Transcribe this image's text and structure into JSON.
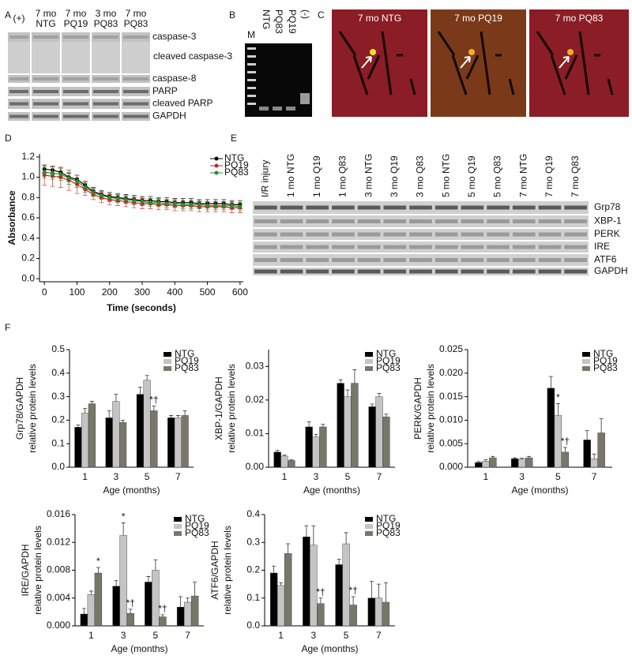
{
  "panel_labels": [
    "A",
    "B",
    "C",
    "D",
    "E",
    "F"
  ],
  "blot_a": {
    "columns": [
      [
        "(+)"
      ],
      [
        "7 mo",
        "NTG"
      ],
      [
        "7 mo",
        "PQ19"
      ],
      [
        "3 mo",
        "PQ83"
      ],
      [
        "7 mo",
        "PQ83"
      ]
    ],
    "rows": [
      "caspase-3",
      "cleaved caspase-3",
      "caspase-8",
      "PARP",
      "cleaved PARP",
      "GAPDH"
    ]
  },
  "gel_b": {
    "lanes": [
      "M",
      "NTG",
      "PQ83",
      "PQ19",
      "(-)"
    ]
  },
  "images_c": {
    "labels": [
      "7 mo NTG",
      "7 mo PQ19",
      "7 mo PQ83"
    ]
  },
  "blot_e": {
    "columns": [
      "I/R injury",
      "1 mo NTG",
      "1 mo Q19",
      "1 mo Q83",
      "3 mo NTG",
      "3 mo Q19",
      "3 mo Q83",
      "5 mo NTG",
      "5 mo Q19",
      "5 mo Q83",
      "7 mo NTG",
      "7 mo Q19",
      "7 mo Q83"
    ],
    "rows": [
      "Grp78",
      "XBP-1",
      "PERK",
      "IRE",
      "ATF6",
      "GAPDH"
    ]
  },
  "chart_data": [
    {
      "type": "line",
      "xlabel": "Time (seconds)",
      "ylabel": "Absorbance",
      "x": [
        0,
        25,
        50,
        75,
        100,
        125,
        150,
        175,
        200,
        225,
        250,
        275,
        300,
        325,
        350,
        375,
        400,
        425,
        450,
        475,
        500,
        525,
        550,
        575,
        600
      ],
      "xlim": [
        -15,
        610
      ],
      "xticks": [
        0,
        100,
        200,
        300,
        400,
        500,
        600
      ],
      "ylim": [
        -0.03,
        1.23
      ],
      "yticks": [
        {
          "value": 0,
          "label": "0.0"
        },
        0.2,
        0.4,
        0.6,
        0.8,
        {
          "value": 1,
          "label": "1.0"
        },
        1.2
      ],
      "legend": "upper right",
      "series": [
        {
          "name": "NTG",
          "color": "#000000",
          "values": [
            1.08,
            1.07,
            1.05,
            1.0,
            0.98,
            0.92,
            0.86,
            0.83,
            0.81,
            0.8,
            0.79,
            0.78,
            0.77,
            0.77,
            0.76,
            0.76,
            0.75,
            0.75,
            0.75,
            0.74,
            0.74,
            0.74,
            0.74,
            0.73,
            0.73
          ],
          "errors": [
            0.04,
            0.04,
            0.04,
            0.04,
            0.04,
            0.04,
            0.04,
            0.04,
            0.04,
            0.04,
            0.04,
            0.04,
            0.04,
            0.04,
            0.04,
            0.04,
            0.04,
            0.04,
            0.04,
            0.04,
            0.04,
            0.04,
            0.04,
            0.04,
            0.04
          ]
        },
        {
          "name": "PQ19",
          "color": "#d02020",
          "values": [
            1.02,
            1.01,
            1.0,
            0.97,
            0.93,
            0.88,
            0.83,
            0.8,
            0.78,
            0.77,
            0.76,
            0.75,
            0.74,
            0.74,
            0.73,
            0.73,
            0.72,
            0.72,
            0.72,
            0.71,
            0.71,
            0.71,
            0.71,
            0.7,
            0.7
          ],
          "errors": [
            0.1,
            0.1,
            0.1,
            0.1,
            0.09,
            0.06,
            0.05,
            0.05,
            0.05,
            0.05,
            0.05,
            0.05,
            0.05,
            0.05,
            0.05,
            0.05,
            0.05,
            0.05,
            0.05,
            0.05,
            0.05,
            0.05,
            0.05,
            0.05,
            0.05
          ]
        },
        {
          "name": "PQ83",
          "color": "#2e8b2e",
          "values": [
            1.05,
            1.04,
            1.03,
            0.99,
            0.96,
            0.9,
            0.85,
            0.82,
            0.8,
            0.79,
            0.78,
            0.77,
            0.76,
            0.75,
            0.75,
            0.74,
            0.74,
            0.73,
            0.73,
            0.73,
            0.72,
            0.72,
            0.72,
            0.72,
            0.71
          ],
          "errors": [
            0.06,
            0.06,
            0.06,
            0.06,
            0.06,
            0.05,
            0.04,
            0.04,
            0.04,
            0.04,
            0.04,
            0.04,
            0.04,
            0.04,
            0.04,
            0.04,
            0.04,
            0.04,
            0.04,
            0.04,
            0.04,
            0.04,
            0.04,
            0.04,
            0.04
          ]
        }
      ]
    },
    {
      "type": "bar",
      "xlabel": "Age (months)",
      "ylabel": [
        "Grp78/GAPDH",
        "relative protein levels"
      ],
      "categories": [
        "1",
        "3",
        "5",
        "7"
      ],
      "ylim": [
        0,
        0.5
      ],
      "yticks": [
        {
          "value": 0,
          "label": "0.0"
        },
        0.1,
        0.2,
        0.3,
        0.4,
        0.5
      ],
      "legend": "upper right",
      "series": [
        {
          "name": "NTG",
          "color": "#000000",
          "values": [
            0.17,
            0.21,
            0.31,
            0.21
          ],
          "errors": [
            0.01,
            0.03,
            0.03,
            0.01
          ]
        },
        {
          "name": "PQ19",
          "color": "#c4c4c4",
          "values": [
            0.23,
            0.28,
            0.37,
            0.21
          ],
          "errors": [
            0.02,
            0.03,
            0.02,
            0.01
          ]
        },
        {
          "name": "PQ83",
          "color": "#77776a",
          "values": [
            0.27,
            0.19,
            0.24,
            0.22
          ],
          "errors": [
            0.01,
            0.01,
            0.02,
            0.02
          ],
          "annotations": [
            null,
            null,
            "*†",
            null
          ]
        }
      ]
    },
    {
      "type": "bar",
      "xlabel": "Age (months)",
      "ylabel": [
        "XBP-1/GAPDH",
        "relative protein levels"
      ],
      "categories": [
        "1",
        "3",
        "5",
        "7"
      ],
      "ylim": [
        0,
        0.035
      ],
      "yticks": [
        {
          "value": 0,
          "label": "0.00"
        },
        0.01,
        0.02,
        0.03
      ],
      "legend": "upper right",
      "series": [
        {
          "name": "NTG",
          "color": "#000000",
          "values": [
            0.0045,
            0.012,
            0.025,
            0.018
          ],
          "errors": [
            0.0005,
            0.0015,
            0.001,
            0.0008
          ]
        },
        {
          "name": "PQ19",
          "color": "#c4c4c4",
          "values": [
            0.0033,
            0.009,
            0.021,
            0.021
          ],
          "errors": [
            0.0003,
            0.0008,
            0.002,
            0.001
          ]
        },
        {
          "name": "PQ83",
          "color": "#77776a",
          "values": [
            0.002,
            0.012,
            0.025,
            0.015
          ],
          "errors": [
            0.0002,
            0.0008,
            0.004,
            0.0008
          ]
        }
      ]
    },
    {
      "type": "bar",
      "xlabel": "Age (months)",
      "ylabel": [
        "PERK/GAPDH",
        "relative protein levels"
      ],
      "categories": [
        "1",
        "3",
        "5",
        "7"
      ],
      "ylim": [
        0,
        0.025
      ],
      "yticks": [
        {
          "value": 0,
          "label": "0.000"
        },
        0.005,
        {
          "value": 0.01,
          "label": "0.010"
        },
        0.015,
        {
          "value": 0.02,
          "label": "0.020"
        },
        0.025
      ],
      "legend": "upper right",
      "series": [
        {
          "name": "NTG",
          "color": "#000000",
          "values": [
            0.001,
            0.0018,
            0.0168,
            0.0058
          ],
          "errors": [
            0.0002,
            0.0002,
            0.0025,
            0.002
          ]
        },
        {
          "name": "PQ19",
          "color": "#c4c4c4",
          "values": [
            0.0013,
            0.0017,
            0.011,
            0.0018
          ],
          "errors": [
            0.0003,
            0.0002,
            0.0025,
            0.001
          ],
          "annotations": [
            null,
            null,
            "*",
            null
          ]
        },
        {
          "name": "PQ83",
          "color": "#77776a",
          "values": [
            0.002,
            0.002,
            0.0032,
            0.0073
          ],
          "errors": [
            0.0003,
            0.0003,
            0.001,
            0.003
          ],
          "annotations": [
            null,
            null,
            "*†",
            null
          ]
        }
      ]
    },
    {
      "type": "bar",
      "xlabel": "Age (months)",
      "ylabel": [
        "IRE/GAPDH",
        "relative protein levels"
      ],
      "categories": [
        "1",
        "3",
        "5",
        "7"
      ],
      "ylim": [
        0,
        0.016
      ],
      "yticks": [
        {
          "value": 0,
          "label": "0.000"
        },
        0.004,
        0.008,
        0.012,
        0.016
      ],
      "legend": "upper right",
      "series": [
        {
          "name": "NTG",
          "color": "#000000",
          "values": [
            0.0017,
            0.0057,
            0.0063,
            0.0027
          ],
          "errors": [
            0.0008,
            0.0008,
            0.0008,
            0.0015
          ]
        },
        {
          "name": "PQ19",
          "color": "#c4c4c4",
          "values": [
            0.0045,
            0.013,
            0.008,
            0.0034
          ],
          "errors": [
            0.0005,
            0.0018,
            0.0015,
            0.0006
          ],
          "annotations": [
            null,
            "*",
            null,
            null
          ]
        },
        {
          "name": "PQ83",
          "color": "#77776a",
          "values": [
            0.0076,
            0.0018,
            0.0013,
            0.0043
          ],
          "errors": [
            0.0008,
            0.0006,
            0.0003,
            0.002
          ],
          "annotations": [
            "*",
            "*†",
            "*†",
            null
          ]
        }
      ]
    },
    {
      "type": "bar",
      "xlabel": "Age (months)",
      "ylabel": [
        "ATF6/GAPDH",
        "relative protein levels"
      ],
      "categories": [
        "1",
        "3",
        "5",
        "7"
      ],
      "ylim": [
        0,
        0.4
      ],
      "yticks": [
        {
          "value": 0,
          "label": "0.0"
        },
        0.1,
        0.2,
        0.3,
        0.4
      ],
      "legend": "upper right",
      "series": [
        {
          "name": "NTG",
          "color": "#000000",
          "values": [
            0.19,
            0.32,
            0.22,
            0.1
          ],
          "errors": [
            0.025,
            0.04,
            0.02,
            0.06
          ]
        },
        {
          "name": "PQ19",
          "color": "#c4c4c4",
          "values": [
            0.145,
            0.29,
            0.295,
            0.1
          ],
          "errors": [
            0.01,
            0.07,
            0.04,
            0.05
          ]
        },
        {
          "name": "PQ83",
          "color": "#77776a",
          "values": [
            0.26,
            0.08,
            0.075,
            0.085
          ],
          "errors": [
            0.035,
            0.02,
            0.03,
            0.07
          ],
          "annotations": [
            null,
            "*†",
            "*†",
            null
          ]
        }
      ]
    }
  ]
}
